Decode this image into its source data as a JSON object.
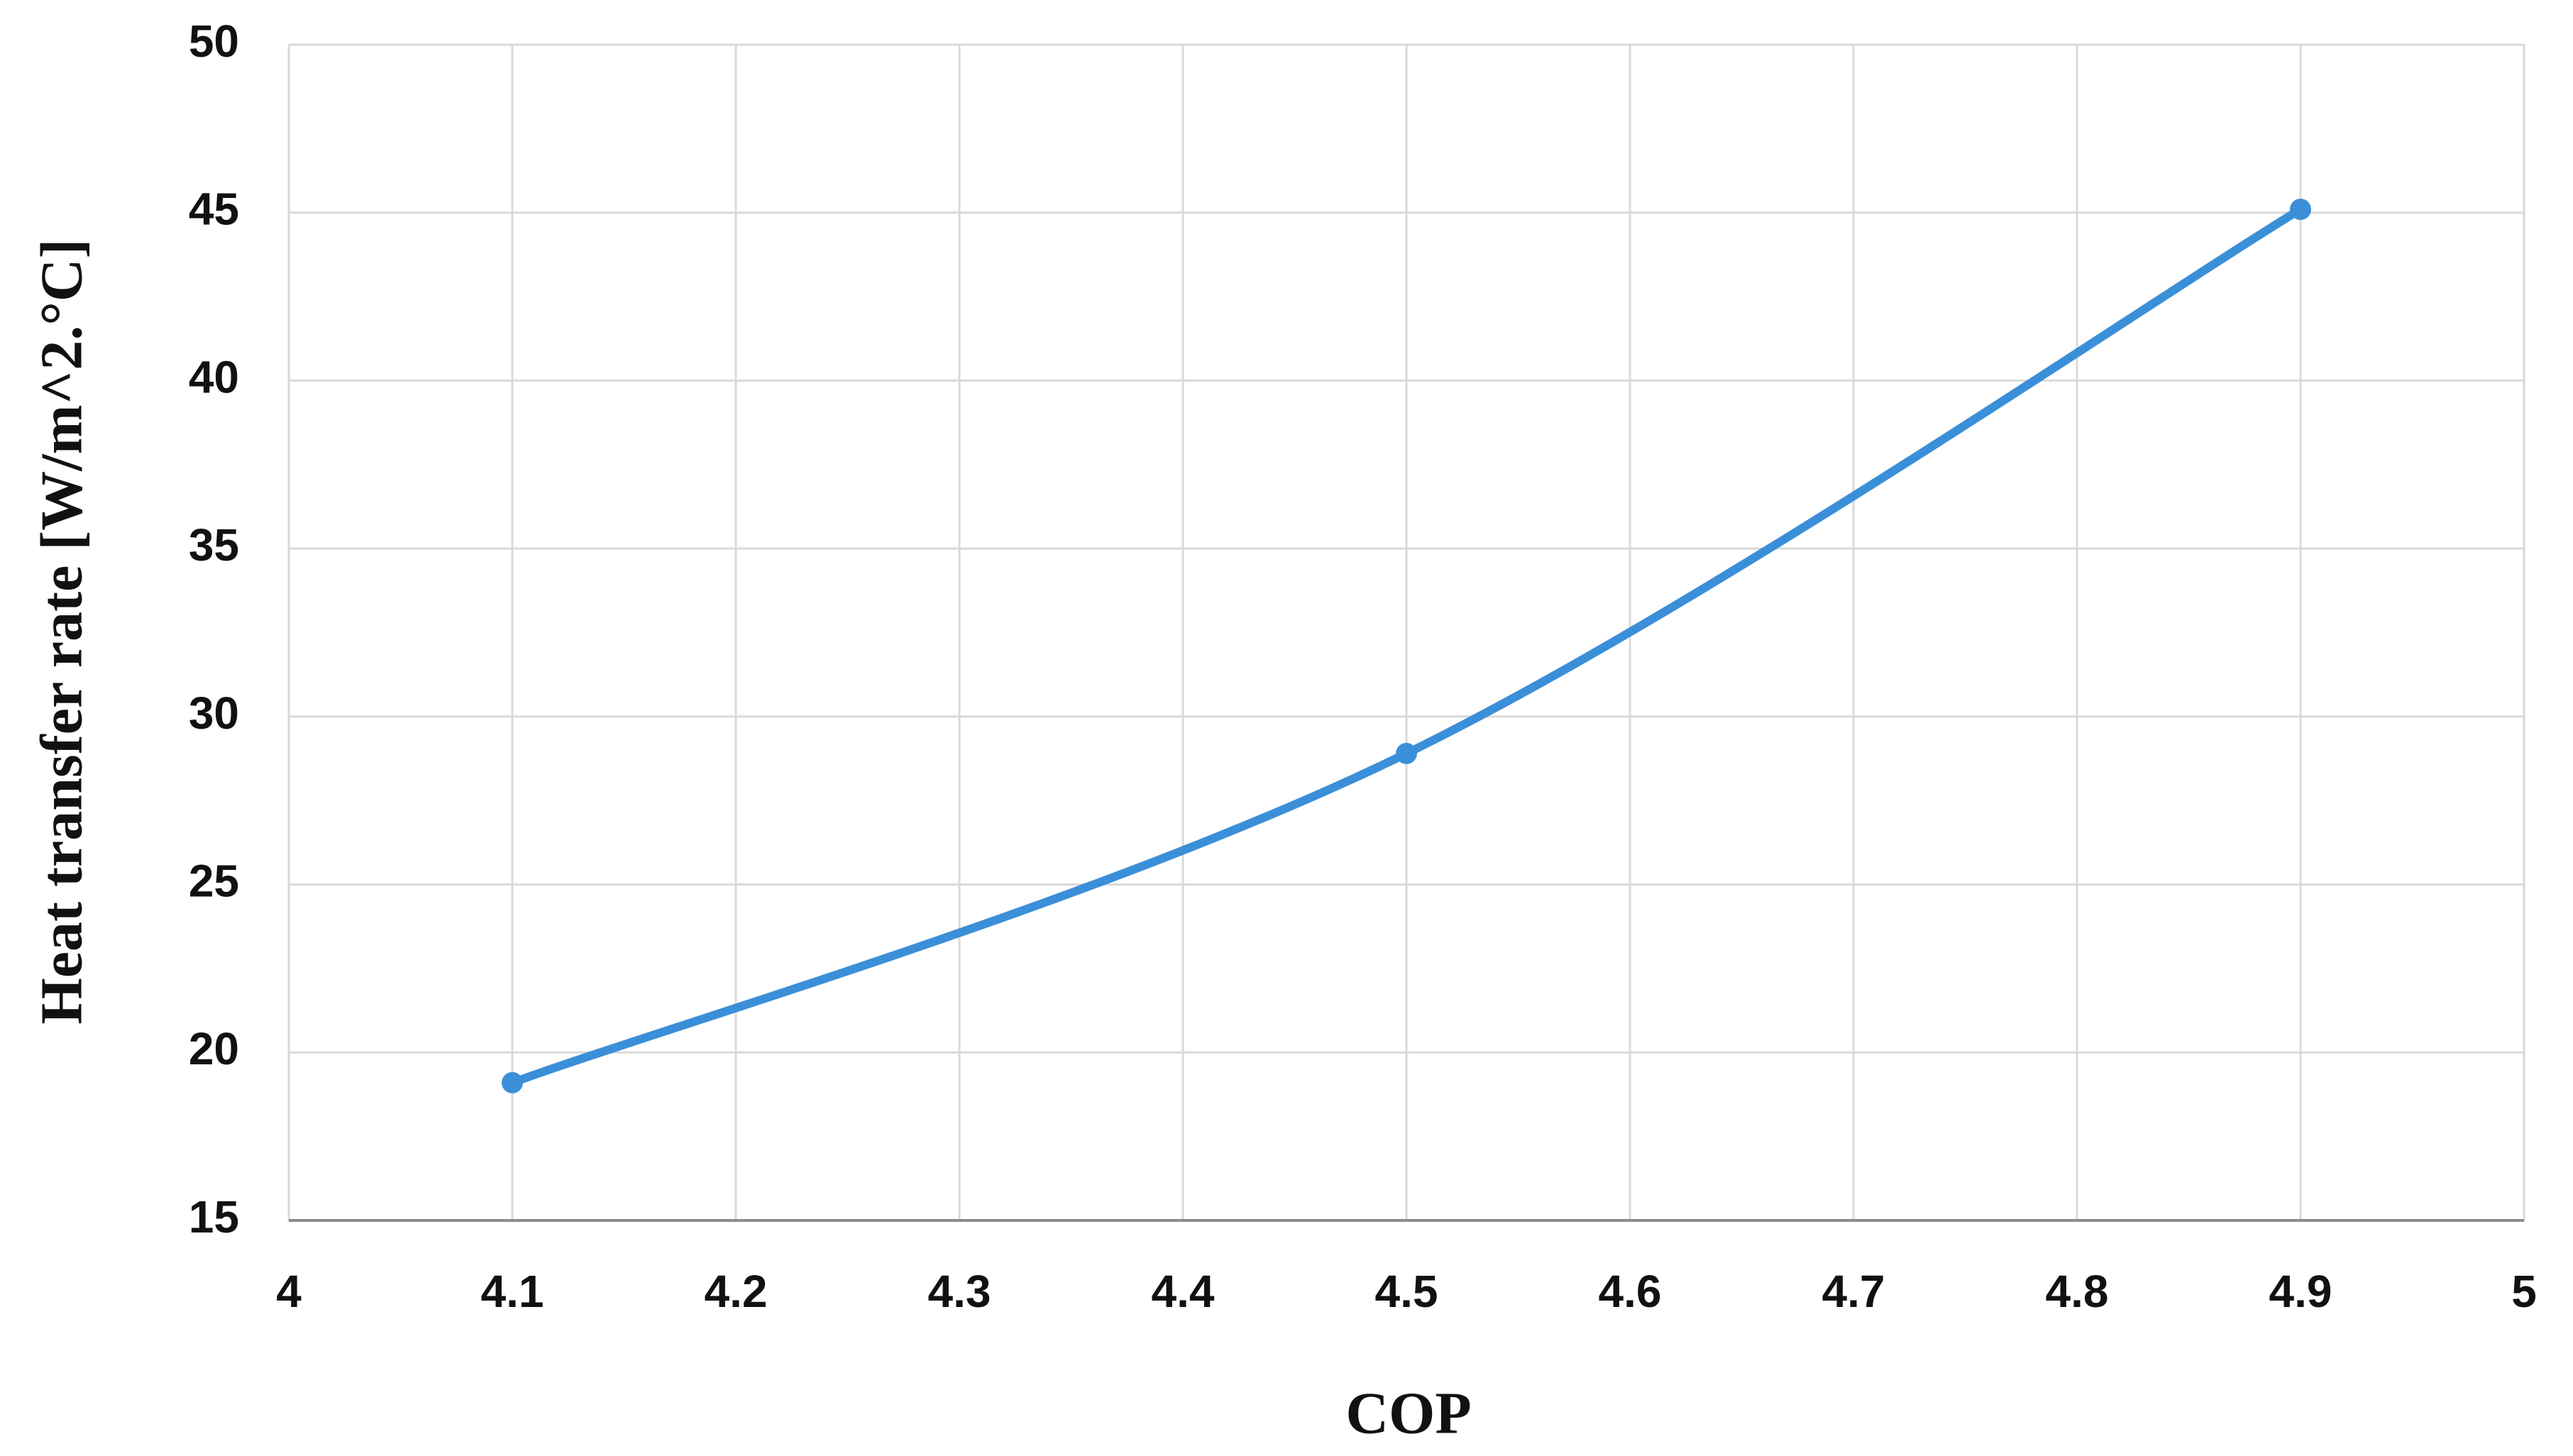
{
  "chart_data": {
    "type": "line",
    "x_label": "COP",
    "y_label": "Heat transfer rate [W/m^2.°C]",
    "x": [
      4.1,
      4.5,
      4.9
    ],
    "values": [
      19.1,
      28.9,
      45.1
    ],
    "color": "#3b8fd8",
    "smooth": true,
    "markers": true,
    "xlim": [
      4,
      5
    ],
    "xticks": [
      4,
      4.1,
      4.2,
      4.3,
      4.4,
      4.5,
      4.6,
      4.7,
      4.8,
      4.9,
      5
    ],
    "ylim": [
      15,
      50
    ],
    "yticks": [
      15,
      20,
      25,
      30,
      35,
      40,
      45,
      50
    ],
    "grid": true
  }
}
